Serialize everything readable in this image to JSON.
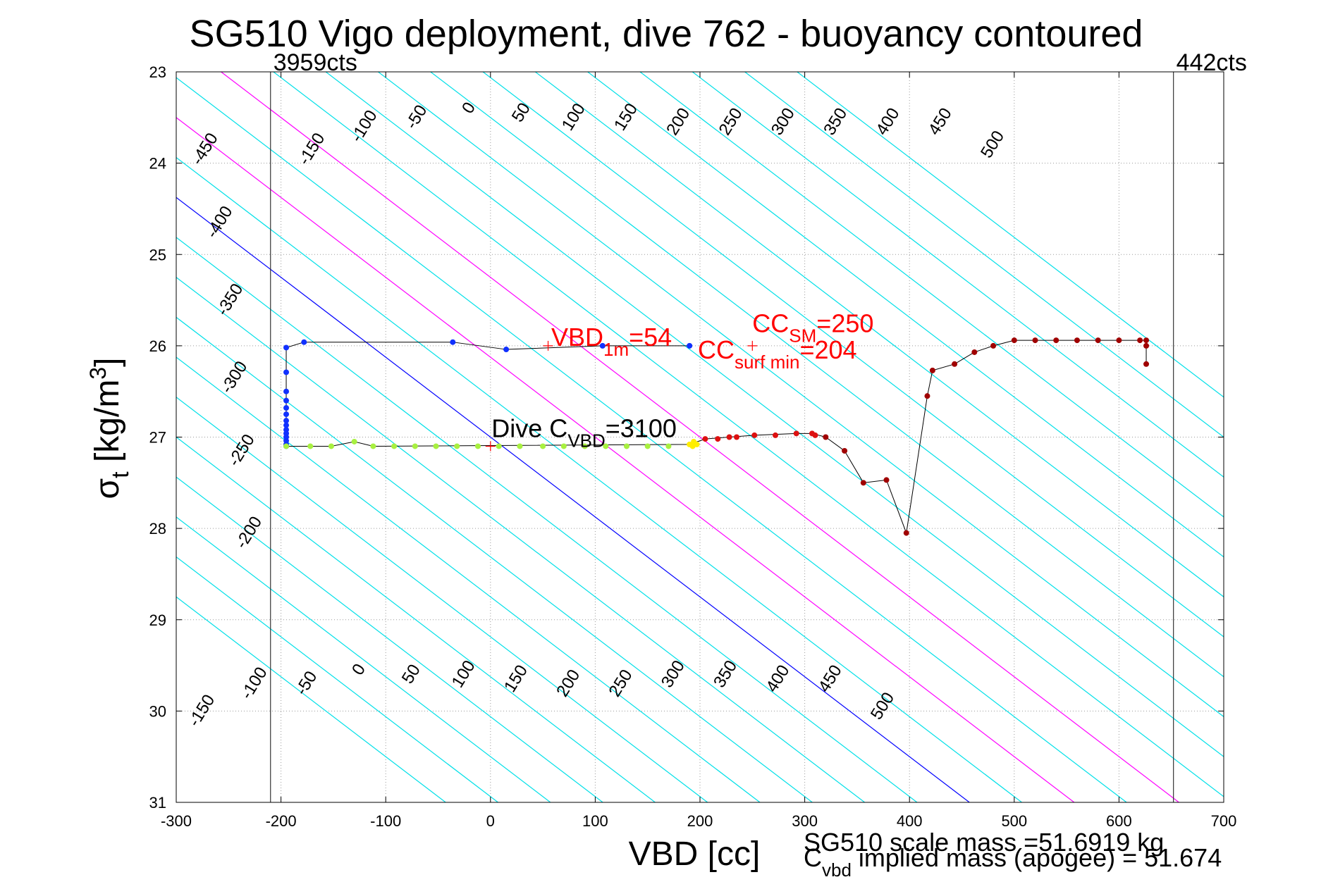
{
  "chart_data": {
    "type": "scatter",
    "title": "SG510 Vigo deployment, dive 762 - buoyancy contoured",
    "xlabel": "VBD [cc]",
    "ylabel_main": "σ",
    "ylabel_sub": "t",
    "ylabel_unit": " [kg/m",
    "ylabel_sup": "3",
    "ylabel_close": "]",
    "xlim": [
      -300,
      700
    ],
    "ylim": [
      23,
      31
    ],
    "y_reversed": true,
    "grid": true,
    "x_ticks": [
      -300,
      -200,
      -100,
      0,
      100,
      200,
      300,
      400,
      500,
      600,
      700
    ],
    "y_ticks": [
      23,
      24,
      25,
      26,
      27,
      28,
      29,
      30,
      31
    ],
    "vlines": [
      {
        "x": -210,
        "label": "3959cts",
        "label_side": "right"
      },
      {
        "x": 652,
        "label": "442cts",
        "label_side": "right"
      }
    ],
    "contour_slope_cc_per_sigma": 114.3,
    "contour_offset_cc_per_buoy": 1.0,
    "contour_lines": [
      {
        "value": -500,
        "color": "#00e0e8"
      },
      {
        "value": -450,
        "color": "#00e0e8"
      },
      {
        "value": -400,
        "color": "#00e0e8"
      },
      {
        "value": -350,
        "color": "#00e0e8"
      },
      {
        "value": -300,
        "color": "#00e0e8"
      },
      {
        "value": -250,
        "color": "#00e0e8"
      },
      {
        "value": -200,
        "color": "#00e0e8"
      },
      {
        "value": -150,
        "color": "#00e0e8"
      },
      {
        "value": -100,
        "color": "#00e0e8"
      },
      {
        "value": -50,
        "color": "#00e0e8"
      },
      {
        "value": 0,
        "color": "#0000ff"
      },
      {
        "value": 50,
        "color": "#00e0e8"
      },
      {
        "value": 100,
        "color": "#ff00ff"
      },
      {
        "value": 150,
        "color": "#00e0e8"
      },
      {
        "value": 200,
        "color": "#ff00ff"
      },
      {
        "value": 250,
        "color": "#00e0e8"
      },
      {
        "value": 300,
        "color": "#00e0e8"
      },
      {
        "value": 350,
        "color": "#00e0e8"
      },
      {
        "value": 400,
        "color": "#00e0e8"
      },
      {
        "value": 450,
        "color": "#00e0e8"
      },
      {
        "value": 500,
        "color": "#00e0e8"
      },
      {
        "value": 550,
        "color": "#00e0e8"
      },
      {
        "value": 600,
        "color": "#00e0e8"
      },
      {
        "value": 650,
        "color": "#00e0e8"
      },
      {
        "value": 700,
        "color": "#00e0e8"
      },
      {
        "value": 750,
        "color": "#00e0e8"
      }
    ],
    "top_contour_labels": [
      "-450",
      "-400",
      "-350",
      "-300",
      "-250",
      "-200",
      "-150",
      "-100",
      "-50",
      "0",
      "50",
      "100",
      "150",
      "200",
      "250",
      "300",
      "350",
      "400",
      "450",
      "500"
    ],
    "top_contour_label_values": [
      -450,
      -400,
      -350,
      -300,
      -250,
      -200,
      -150,
      -100,
      -50,
      0,
      50,
      100,
      150,
      200,
      250,
      300,
      350,
      400,
      450,
      500
    ],
    "top_contour_label_pos": [
      [
        -272,
        23.85
      ],
      [
        -258,
        24.65
      ],
      [
        -248,
        25.5
      ],
      [
        -244,
        26.35
      ],
      [
        -237,
        27.15
      ],
      [
        -230,
        28.05
      ],
      [
        -170,
        23.85
      ],
      [
        -120,
        23.6
      ],
      [
        -70,
        23.5
      ],
      [
        -20,
        23.4
      ],
      [
        30,
        23.45
      ],
      [
        80,
        23.5
      ],
      [
        130,
        23.5
      ],
      [
        180,
        23.55
      ],
      [
        230,
        23.55
      ],
      [
        280,
        23.55
      ],
      [
        330,
        23.55
      ],
      [
        380,
        23.55
      ],
      [
        430,
        23.55
      ],
      [
        480,
        23.8
      ]
    ],
    "bottom_contour_labels": [
      "-150",
      "-100",
      "-50",
      "0",
      "50",
      "100",
      "150",
      "200",
      "250",
      "300",
      "350",
      "400",
      "450",
      "500"
    ],
    "bottom_contour_label_values": [
      -150,
      -100,
      -50,
      0,
      50,
      100,
      150,
      200,
      250,
      300,
      350,
      400,
      450,
      500
    ],
    "bottom_contour_label_pos": [
      [
        -275,
        30.0
      ],
      [
        -225,
        29.7
      ],
      [
        -175,
        29.7
      ],
      [
        -125,
        29.55
      ],
      [
        -75,
        29.6
      ],
      [
        -25,
        29.6
      ],
      [
        25,
        29.65
      ],
      [
        75,
        29.7
      ],
      [
        125,
        29.7
      ],
      [
        175,
        29.6
      ],
      [
        225,
        29.6
      ],
      [
        275,
        29.65
      ],
      [
        325,
        29.65
      ],
      [
        375,
        29.95
      ]
    ],
    "series": [
      {
        "color": "#1030ff",
        "points": [
          [
            -195,
            26.02
          ],
          [
            -178,
            25.96
          ],
          [
            -36,
            25.96
          ],
          [
            15,
            26.04
          ],
          [
            107,
            26.0
          ],
          [
            190,
            26.0
          ],
          [
            -195,
            26.29
          ],
          [
            -195,
            26.5
          ],
          [
            -195,
            26.6
          ],
          [
            -195,
            26.68
          ],
          [
            -195,
            26.75
          ],
          [
            -195,
            26.82
          ],
          [
            -195,
            26.87
          ],
          [
            -195,
            26.92
          ],
          [
            -195,
            26.96
          ],
          [
            -195,
            27.0
          ],
          [
            -195,
            27.04
          ],
          [
            -195,
            27.08
          ],
          [
            -195,
            27.1
          ]
        ]
      },
      {
        "color": "#a8f040",
        "points": [
          [
            -195,
            27.1
          ],
          [
            -172,
            27.1
          ],
          [
            -152,
            27.1
          ],
          [
            -130,
            27.05
          ],
          [
            -112,
            27.1
          ],
          [
            -92,
            27.1
          ],
          [
            -72,
            27.1
          ],
          [
            -52,
            27.1
          ],
          [
            -32,
            27.1
          ],
          [
            -12,
            27.1
          ],
          [
            8,
            27.1
          ],
          [
            28,
            27.1
          ],
          [
            50,
            27.1
          ],
          [
            70,
            27.1
          ],
          [
            90,
            27.1
          ],
          [
            110,
            27.1
          ],
          [
            130,
            27.1
          ],
          [
            150,
            27.1
          ],
          [
            170,
            27.1
          ]
        ]
      },
      {
        "color": "#ffee00",
        "points": [
          [
            190,
            27.08
          ],
          [
            194,
            27.05
          ],
          [
            197,
            27.08
          ],
          [
            193,
            27.1
          ]
        ]
      },
      {
        "color": "#dd1010",
        "points": [
          [
            205,
            27.02
          ],
          [
            217,
            27.02
          ],
          [
            228,
            27.0
          ],
          [
            235,
            27.0
          ],
          [
            252,
            26.98
          ],
          [
            272,
            26.98
          ],
          [
            292,
            26.96
          ],
          [
            307,
            26.96
          ],
          [
            310,
            26.98
          ]
        ]
      },
      {
        "color": "#a00000",
        "points": [
          [
            320,
            27.0
          ],
          [
            338,
            27.15
          ],
          [
            356,
            27.5
          ],
          [
            378,
            27.47
          ],
          [
            397,
            28.05
          ],
          [
            417,
            26.55
          ],
          [
            422,
            26.27
          ],
          [
            443,
            26.2
          ],
          [
            462,
            26.07
          ],
          [
            480,
            26.0
          ],
          [
            500,
            25.94
          ],
          [
            520,
            25.94
          ],
          [
            540,
            25.94
          ],
          [
            560,
            25.94
          ],
          [
            580,
            25.94
          ],
          [
            600,
            25.94
          ],
          [
            620,
            25.94
          ],
          [
            626,
            25.94
          ],
          [
            626,
            26.0
          ],
          [
            626,
            26.2
          ]
        ]
      }
    ],
    "path_line": [
      [
        -178,
        25.96
      ],
      [
        -195,
        26.02
      ],
      [
        -195,
        27.1
      ],
      [
        -172,
        27.1
      ],
      [
        -152,
        27.1
      ],
      [
        -130,
        27.05
      ],
      [
        -112,
        27.1
      ],
      [
        190,
        27.08
      ],
      [
        205,
        27.02
      ],
      [
        228,
        27.0
      ],
      [
        252,
        26.98
      ],
      [
        292,
        26.96
      ],
      [
        307,
        26.96
      ],
      [
        320,
        27.0
      ],
      [
        338,
        27.15
      ],
      [
        356,
        27.5
      ],
      [
        378,
        27.47
      ],
      [
        397,
        28.05
      ],
      [
        417,
        26.55
      ],
      [
        422,
        26.27
      ],
      [
        443,
        26.2
      ],
      [
        462,
        26.07
      ],
      [
        480,
        26.0
      ],
      [
        500,
        25.94
      ],
      [
        620,
        25.94
      ],
      [
        626,
        25.94
      ],
      [
        626,
        26.2
      ]
    ],
    "path_line_top": [
      [
        -178,
        25.96
      ],
      [
        -36,
        25.96
      ],
      [
        15,
        26.04
      ],
      [
        107,
        26.0
      ],
      [
        190,
        26.0
      ]
    ],
    "markers": [
      {
        "x": 55,
        "y": 26.0,
        "color": "#ff0000"
      },
      {
        "x": 250,
        "y": 26.0,
        "color": "#ff0000"
      },
      {
        "x": 0,
        "y": 27.1,
        "color": "#ff0000"
      }
    ],
    "annotations": [
      {
        "x": 58,
        "y": 26.0,
        "main": "VBD",
        "sub": "1m",
        "rest": "=54",
        "color": "#ff0000"
      },
      {
        "x": 250,
        "y": 25.85,
        "main": "CC",
        "sub": "SM",
        "rest": "=250",
        "color": "#ff0000"
      },
      {
        "x": 198,
        "y": 26.14,
        "main": "CC",
        "sub": "surf min",
        "rest": "=204",
        "color": "#ff0000"
      },
      {
        "x": 1,
        "y": 27.0,
        "main": "Dive C",
        "sub": "VBD",
        "rest": "=3100",
        "color": "#000000"
      }
    ],
    "footer_mass": "SG510 scale mass =51.6919 kg",
    "footer_implied_main": "C",
    "footer_implied_sub": "vbd",
    "footer_implied_rest": " implied mass (apogee) = 51.674"
  }
}
